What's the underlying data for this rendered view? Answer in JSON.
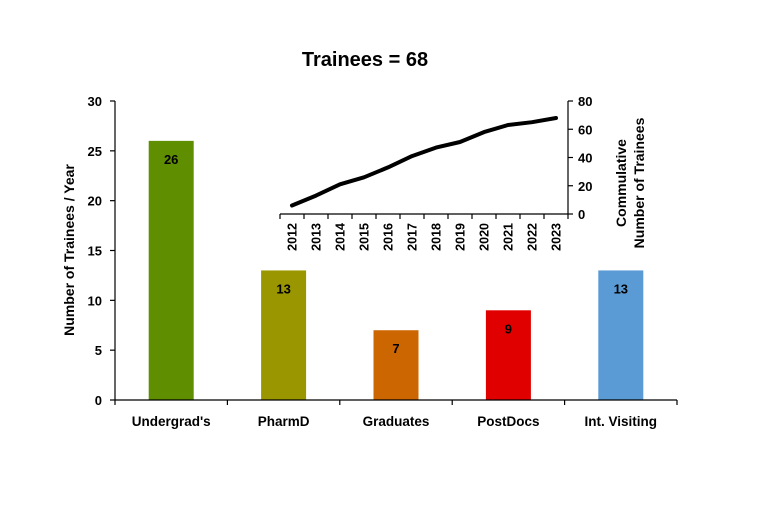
{
  "chart_data": [
    {
      "type": "bar",
      "title": "Trainees = 68",
      "xlabel": "",
      "ylabel": "Number of Trainees / Year",
      "ylim": [
        0,
        30
      ],
      "yticks": [
        0,
        5,
        10,
        15,
        20,
        25,
        30
      ],
      "categories": [
        "Undergrad's",
        "PharmD",
        "Graduates",
        "PostDocs",
        "Int. Visiting"
      ],
      "values": [
        26,
        13,
        7,
        9,
        13
      ],
      "colors": [
        "#5f8f00",
        "#9a9600",
        "#cc6600",
        "#e00000",
        "#5b9bd5"
      ],
      "data_labels": true,
      "grid": false,
      "legend": null
    },
    {
      "type": "line",
      "title": "",
      "xlabel": "",
      "ylabel": "Commulative Number of Trainees",
      "ylim": [
        0,
        80
      ],
      "yticks": [
        0,
        20,
        40,
        60,
        80
      ],
      "y_axis_position": "right",
      "x": [
        "2012",
        "2013",
        "2014",
        "2015",
        "2016",
        "2017",
        "2018",
        "2019",
        "2020",
        "2021",
        "2022",
        "2023"
      ],
      "values": [
        6,
        13,
        21,
        26,
        33,
        41,
        47,
        51,
        58,
        63,
        65,
        68
      ],
      "color": "#000000",
      "grid": false,
      "inset": true
    }
  ],
  "labels": {
    "title": "Trainees = 68",
    "ylabel_main": "Number of Trainees / Year",
    "ylabel_inset_line1": "Commulative",
    "ylabel_inset_line2": "Number of Trainees"
  }
}
